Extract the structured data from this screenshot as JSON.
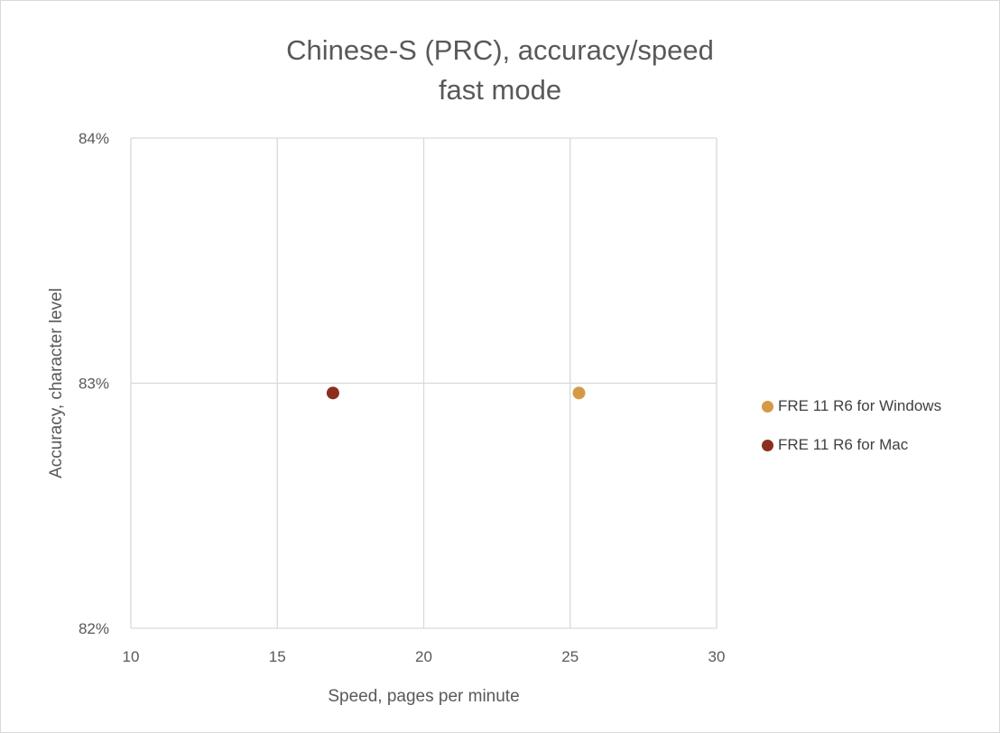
{
  "chart_data": {
    "type": "scatter",
    "title_lines": [
      "Chinese-S (PRC), accuracy/speed",
      "fast mode"
    ],
    "xlabel": "Speed, pages per minute",
    "ylabel": "Accuracy, character level",
    "xlim": [
      10,
      30
    ],
    "ylim": [
      0.82,
      0.84
    ],
    "x_ticks": [
      "10",
      "15",
      "20",
      "25",
      "30"
    ],
    "y_ticks": [
      "84%",
      "83%",
      "82%"
    ],
    "grid": true,
    "legend_position": "right",
    "series": [
      {
        "name": "FRE 11 R6 for Windows",
        "color": "#d49a46",
        "points": [
          {
            "x": 25.3,
            "y": 0.8296
          }
        ]
      },
      {
        "name": "FRE 11 R6 for Mac",
        "color": "#8b2e1e",
        "points": [
          {
            "x": 16.9,
            "y": 0.8296
          }
        ]
      }
    ]
  }
}
